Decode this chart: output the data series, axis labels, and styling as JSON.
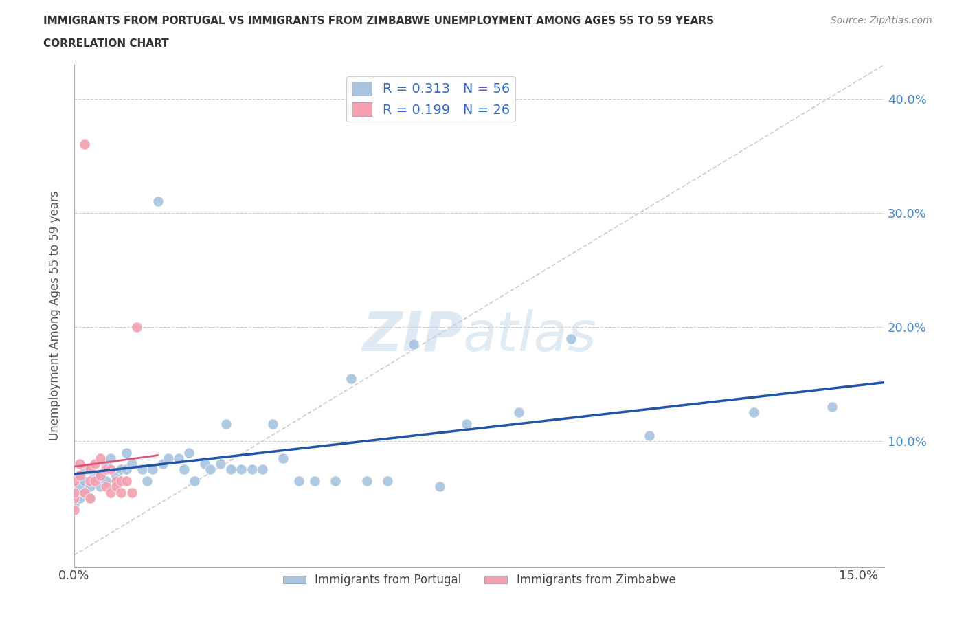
{
  "title_line1": "IMMIGRANTS FROM PORTUGAL VS IMMIGRANTS FROM ZIMBABWE UNEMPLOYMENT AMONG AGES 55 TO 59 YEARS",
  "title_line2": "CORRELATION CHART",
  "source": "Source: ZipAtlas.com",
  "ylabel": "Unemployment Among Ages 55 to 59 years",
  "xlim": [
    0.0,
    0.155
  ],
  "ylim": [
    -0.01,
    0.43
  ],
  "portugal_R": 0.313,
  "portugal_N": 56,
  "zimbabwe_R": 0.199,
  "zimbabwe_N": 26,
  "portugal_color": "#a8c4e0",
  "zimbabwe_color": "#f4a0b0",
  "portugal_line_color": "#2255aa",
  "zimbabwe_line_color": "#dd5577",
  "diagonal_color": "#cccccc",
  "watermark_zip": "ZIP",
  "watermark_atlas": "atlas",
  "portugal_x": [
    0.0,
    0.0,
    0.001,
    0.001,
    0.001,
    0.002,
    0.002,
    0.002,
    0.003,
    0.003,
    0.003,
    0.004,
    0.005,
    0.005,
    0.006,
    0.006,
    0.007,
    0.008,
    0.009,
    0.01,
    0.01,
    0.011,
    0.013,
    0.014,
    0.015,
    0.016,
    0.017,
    0.018,
    0.02,
    0.021,
    0.022,
    0.023,
    0.025,
    0.026,
    0.028,
    0.029,
    0.03,
    0.032,
    0.034,
    0.036,
    0.038,
    0.04,
    0.043,
    0.046,
    0.05,
    0.053,
    0.056,
    0.06,
    0.065,
    0.07,
    0.075,
    0.085,
    0.095,
    0.11,
    0.13,
    0.145
  ],
  "portugal_y": [
    0.045,
    0.055,
    0.05,
    0.06,
    0.07,
    0.055,
    0.065,
    0.075,
    0.05,
    0.06,
    0.075,
    0.07,
    0.06,
    0.07,
    0.065,
    0.08,
    0.085,
    0.07,
    0.075,
    0.075,
    0.09,
    0.08,
    0.075,
    0.065,
    0.075,
    0.31,
    0.08,
    0.085,
    0.085,
    0.075,
    0.09,
    0.065,
    0.08,
    0.075,
    0.08,
    0.115,
    0.075,
    0.075,
    0.075,
    0.075,
    0.115,
    0.085,
    0.065,
    0.065,
    0.065,
    0.155,
    0.065,
    0.065,
    0.185,
    0.06,
    0.115,
    0.125,
    0.19,
    0.105,
    0.125,
    0.13
  ],
  "zimbabwe_x": [
    0.0,
    0.0,
    0.0,
    0.0,
    0.001,
    0.001,
    0.002,
    0.002,
    0.003,
    0.003,
    0.003,
    0.004,
    0.004,
    0.005,
    0.005,
    0.006,
    0.006,
    0.007,
    0.007,
    0.008,
    0.008,
    0.009,
    0.009,
    0.01,
    0.011,
    0.012
  ],
  "zimbabwe_y": [
    0.04,
    0.05,
    0.055,
    0.065,
    0.07,
    0.08,
    0.055,
    0.36,
    0.05,
    0.065,
    0.075,
    0.065,
    0.08,
    0.07,
    0.085,
    0.06,
    0.075,
    0.075,
    0.055,
    0.065,
    0.06,
    0.055,
    0.065,
    0.065,
    0.055,
    0.2
  ],
  "ytick_positions": [
    0.0,
    0.1,
    0.2,
    0.3,
    0.4
  ],
  "ytick_labels_right": [
    "",
    "10.0%",
    "20.0%",
    "30.0%",
    "40.0%"
  ],
  "xtick_positions": [
    0.0,
    0.05,
    0.1,
    0.15
  ],
  "xtick_labels": [
    "0.0%",
    "",
    "",
    "15.0%"
  ]
}
